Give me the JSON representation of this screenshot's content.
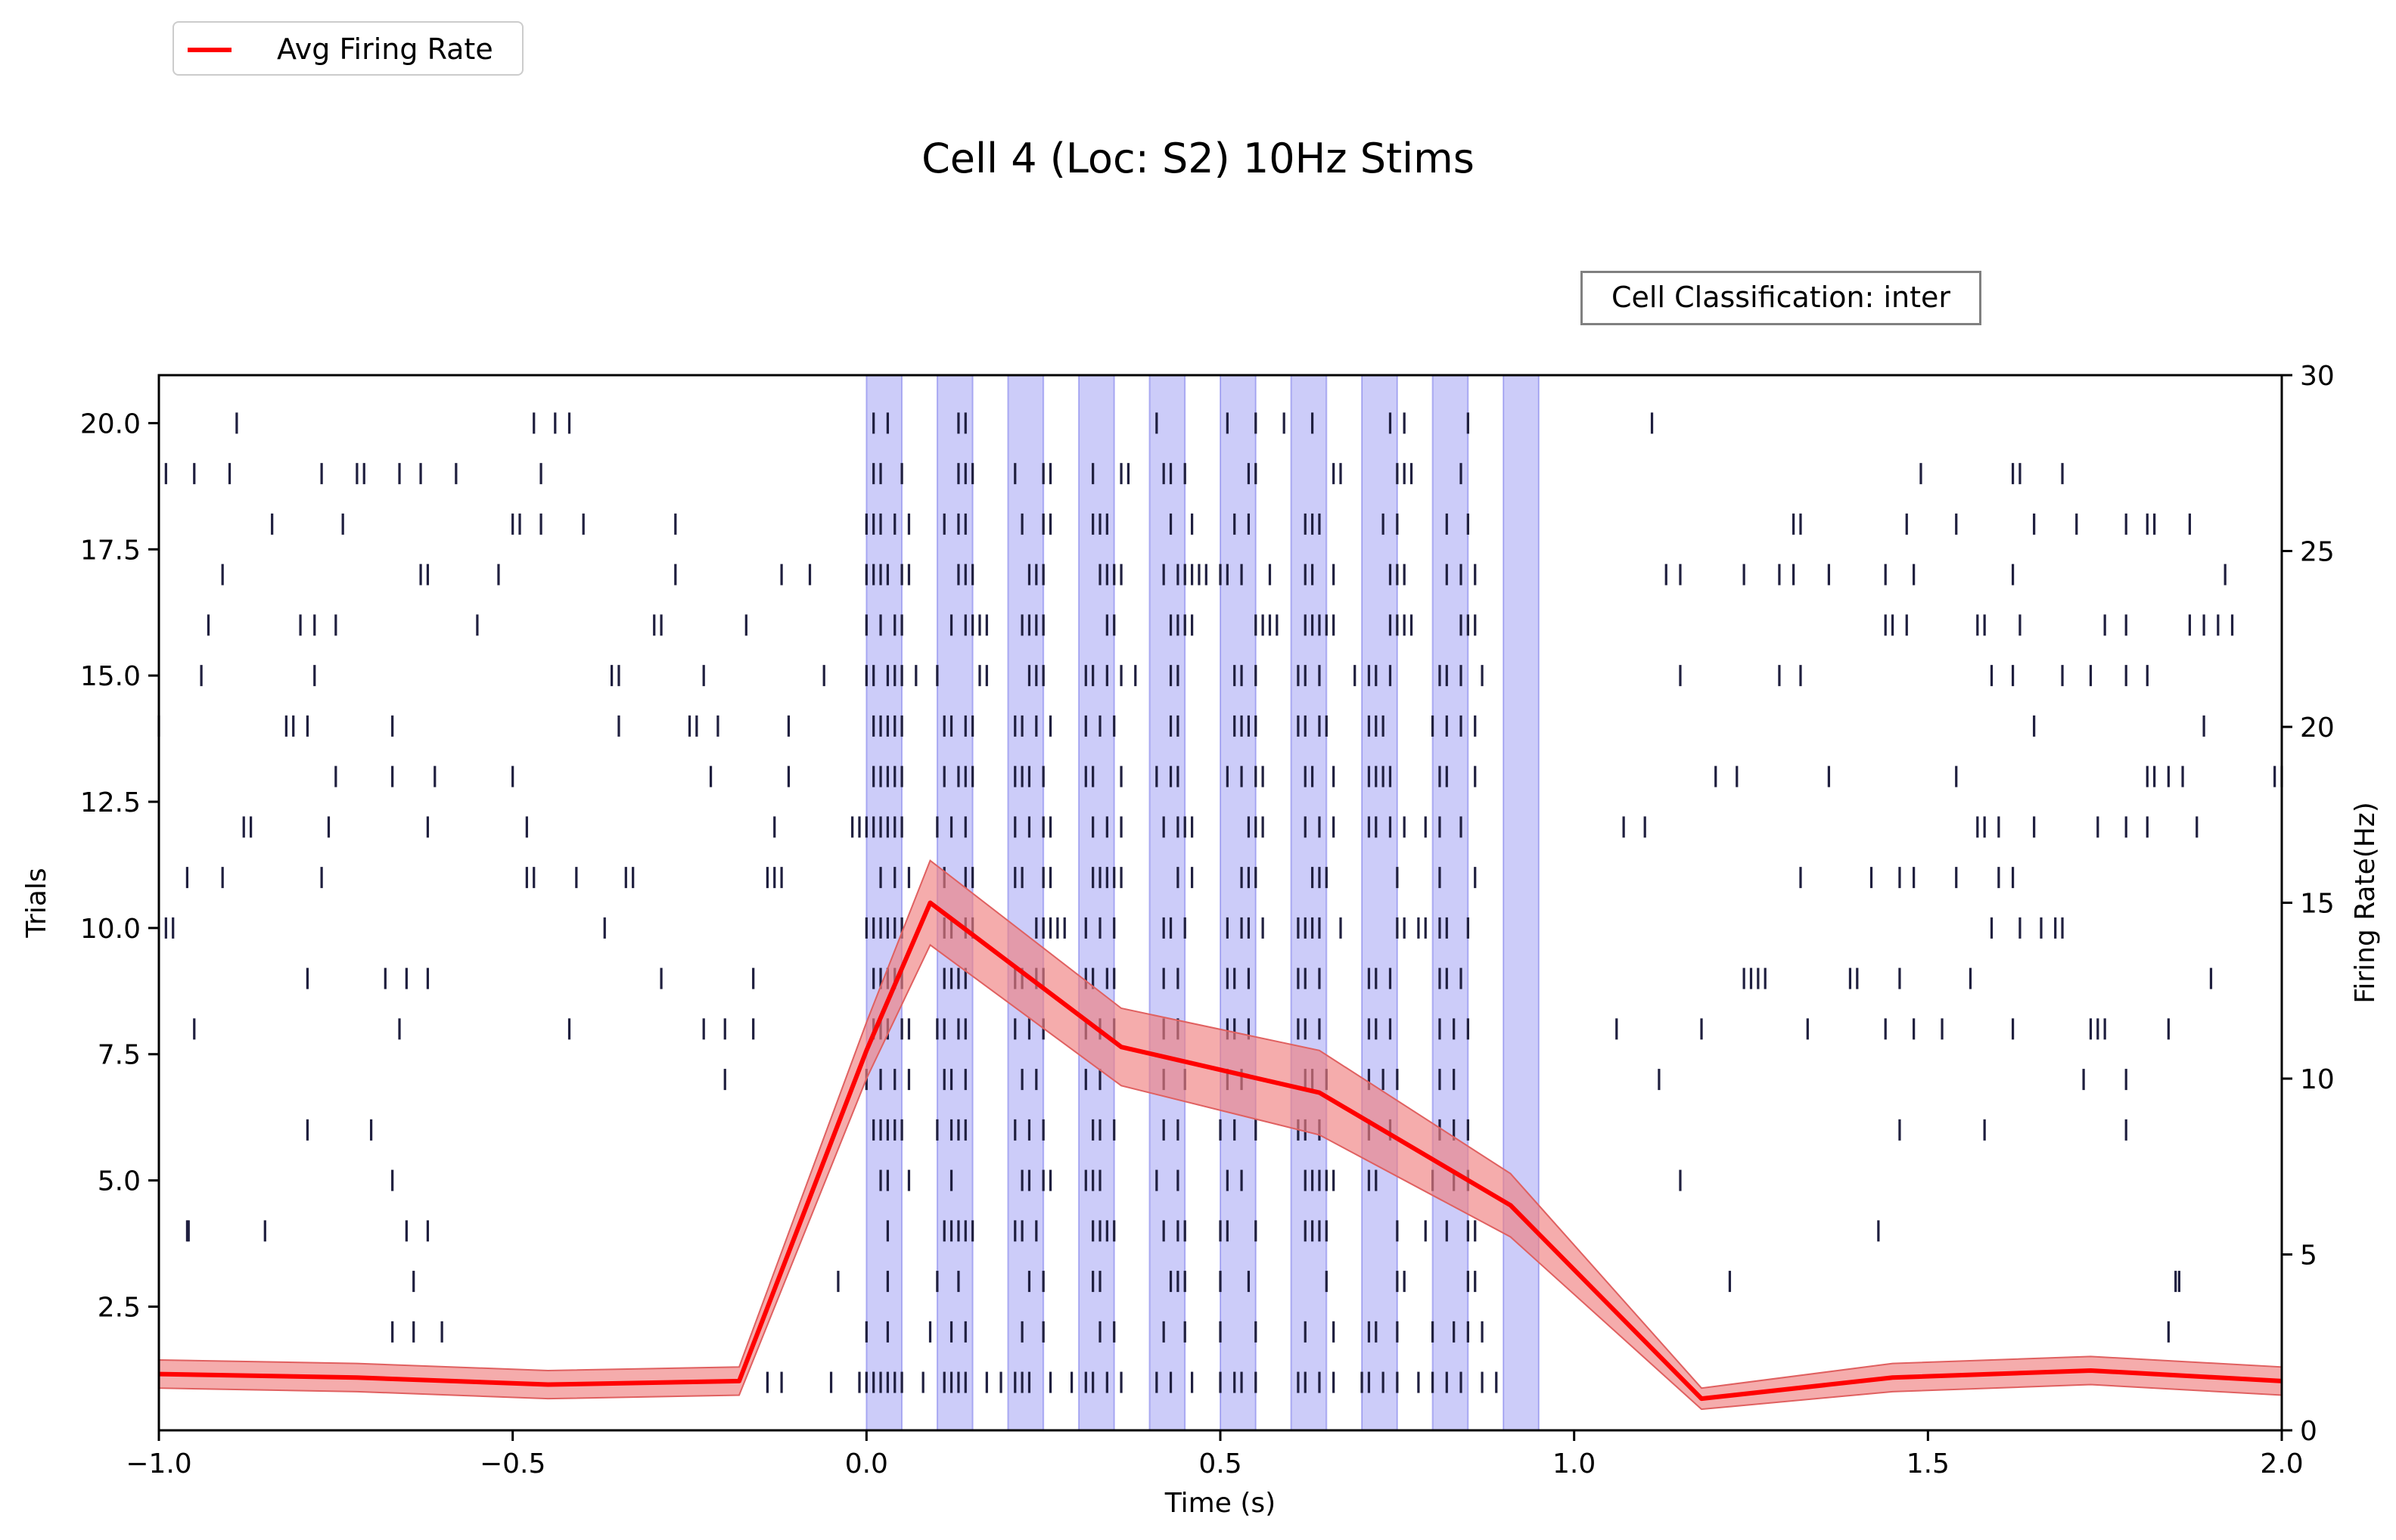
{
  "chart_data": {
    "type": "raster+line",
    "title": "Cell 4 (Loc: S2) 10Hz Stims",
    "annotation": "Cell Classification: inter",
    "xlabel": "Time (s)",
    "ylabel_left": "Trials",
    "ylabel_right": "Firing Rate(Hz)",
    "xlim": [
      -1.0,
      2.0
    ],
    "ylim_left": [
      0.05,
      20.95
    ],
    "ylim_right": [
      0,
      30
    ],
    "x_ticks": [
      "−1.0",
      "−0.5",
      "0.0",
      "0.5",
      "1.0",
      "1.5",
      "2.0"
    ],
    "y_ticks_left": [
      "2.5",
      "5.0",
      "7.5",
      "10.0",
      "12.5",
      "15.0",
      "17.5",
      "20.0"
    ],
    "y_ticks_right": [
      "0",
      "5",
      "10",
      "15",
      "20",
      "25",
      "30"
    ],
    "legend": {
      "placement": "upper-left",
      "entries": [
        "Avg Firing Rate"
      ]
    },
    "colors": {
      "rate_line": "#ff0000",
      "rate_band": "#f08080",
      "stim_band": "#8080f0",
      "spike": "#1f1f3f"
    },
    "stimulus_windows": [
      [
        0.0,
        0.05
      ],
      [
        0.1,
        0.15
      ],
      [
        0.2,
        0.25
      ],
      [
        0.3,
        0.35
      ],
      [
        0.4,
        0.45
      ],
      [
        0.5,
        0.55
      ],
      [
        0.6,
        0.65
      ],
      [
        0.7,
        0.75
      ],
      [
        0.8,
        0.85
      ],
      [
        0.9,
        0.95
      ]
    ],
    "firing_rate": {
      "name": "Avg Firing Rate",
      "x": [
        -1.0,
        -0.72,
        -0.45,
        -0.18,
        0.0,
        0.09,
        0.36,
        0.64,
        0.91,
        1.18,
        1.45,
        1.73,
        2.0
      ],
      "y": [
        1.6,
        1.5,
        1.3,
        1.4,
        10.8,
        15.0,
        10.9,
        9.6,
        6.4,
        0.9,
        1.5,
        1.7,
        1.4
      ],
      "y_upper": [
        2.0,
        1.9,
        1.7,
        1.8,
        11.6,
        16.2,
        12.0,
        10.8,
        7.3,
        1.2,
        1.9,
        2.1,
        1.8
      ],
      "y_lower": [
        1.2,
        1.1,
        0.9,
        1.0,
        10.0,
        13.8,
        9.8,
        8.4,
        5.5,
        0.6,
        1.1,
        1.3,
        1.0
      ]
    },
    "raster": {
      "trials": [
        1,
        2,
        3,
        4,
        5,
        6,
        7,
        8,
        9,
        10,
        11,
        12,
        13,
        14,
        15,
        16,
        17,
        18,
        19,
        20
      ],
      "spike_times": [
        [
          -0.14,
          -0.12,
          -0.05,
          -0.01,
          0.0,
          0.01,
          0.02,
          0.03,
          0.04,
          0.05,
          0.08,
          0.11,
          0.12,
          0.13,
          0.14,
          0.17,
          0.19,
          0.21,
          0.22,
          0.23,
          0.26,
          0.29,
          0.31,
          0.32,
          0.34,
          0.36,
          0.41,
          0.43,
          0.46,
          0.5,
          0.52,
          0.53,
          0.55,
          0.61,
          0.62,
          0.64,
          0.66,
          0.7,
          0.71,
          0.73,
          0.75,
          0.78,
          0.8,
          0.82,
          0.84,
          0.87,
          0.89
        ],
        [
          -0.67,
          -0.64,
          -0.6,
          0.0,
          0.03,
          0.09,
          0.12,
          0.14,
          0.22,
          0.25,
          0.33,
          0.35,
          0.42,
          0.45,
          0.5,
          0.55,
          0.62,
          0.66,
          0.71,
          0.72,
          0.75,
          0.8,
          0.83,
          0.85,
          0.87,
          1.84
        ],
        [
          -0.64,
          -0.04,
          0.03,
          0.1,
          0.13,
          0.23,
          0.25,
          0.32,
          0.33,
          0.43,
          0.44,
          0.45,
          0.5,
          0.54,
          0.65,
          0.75,
          0.76,
          0.85,
          0.86,
          1.22,
          1.85,
          1.855
        ],
        [
          -0.96,
          -0.958,
          -0.85,
          -0.65,
          -0.62,
          0.03,
          0.11,
          0.12,
          0.13,
          0.14,
          0.15,
          0.21,
          0.22,
          0.24,
          0.32,
          0.33,
          0.34,
          0.35,
          0.42,
          0.44,
          0.45,
          0.5,
          0.51,
          0.55,
          0.62,
          0.63,
          0.64,
          0.65,
          0.75,
          0.79,
          0.82,
          0.85,
          0.86,
          1.43
        ],
        [
          -0.67,
          0.02,
          0.03,
          0.06,
          0.12,
          0.22,
          0.23,
          0.25,
          0.26,
          0.31,
          0.32,
          0.33,
          0.41,
          0.44,
          0.51,
          0.53,
          0.62,
          0.63,
          0.64,
          0.65,
          0.66,
          0.71,
          0.72,
          0.8,
          0.83,
          0.85,
          1.15
        ],
        [
          -0.79,
          -0.7,
          0.01,
          0.02,
          0.03,
          0.04,
          0.05,
          0.1,
          0.12,
          0.13,
          0.14,
          0.21,
          0.23,
          0.25,
          0.32,
          0.33,
          0.35,
          0.42,
          0.44,
          0.5,
          0.52,
          0.55,
          0.61,
          0.62,
          0.64,
          0.71,
          0.74,
          0.81,
          0.83,
          0.85,
          1.46,
          1.58,
          1.78
        ],
        [
          -0.2,
          0.0,
          0.02,
          0.04,
          0.06,
          0.11,
          0.12,
          0.14,
          0.22,
          0.24,
          0.31,
          0.33,
          0.42,
          0.45,
          0.51,
          0.53,
          0.62,
          0.63,
          0.65,
          0.71,
          0.73,
          0.75,
          0.81,
          0.83,
          1.12,
          1.72,
          1.78
        ],
        [
          -0.95,
          -0.66,
          -0.42,
          -0.23,
          -0.2,
          -0.16,
          0.01,
          0.02,
          0.03,
          0.05,
          0.06,
          0.1,
          0.11,
          0.13,
          0.14,
          0.21,
          0.23,
          0.25,
          0.31,
          0.33,
          0.35,
          0.42,
          0.44,
          0.51,
          0.52,
          0.54,
          0.61,
          0.62,
          0.64,
          0.71,
          0.72,
          0.74,
          0.81,
          0.83,
          0.85,
          1.06,
          1.18,
          1.33,
          1.44,
          1.48,
          1.52,
          1.62,
          1.73,
          1.74,
          1.75,
          1.84
        ],
        [
          -0.79,
          -0.68,
          -0.65,
          -0.62,
          -0.29,
          -0.16,
          0.01,
          0.02,
          0.03,
          0.04,
          0.05,
          0.11,
          0.12,
          0.13,
          0.14,
          0.21,
          0.22,
          0.24,
          0.25,
          0.31,
          0.32,
          0.34,
          0.35,
          0.42,
          0.44,
          0.51,
          0.52,
          0.54,
          0.61,
          0.62,
          0.64,
          0.71,
          0.72,
          0.74,
          0.81,
          0.82,
          0.84,
          1.24,
          1.25,
          1.26,
          1.27,
          1.39,
          1.4,
          1.46,
          1.56,
          1.9
        ],
        [
          -0.99,
          -0.98,
          -0.37,
          0.0,
          0.01,
          0.02,
          0.03,
          0.04,
          0.05,
          0.11,
          0.12,
          0.14,
          0.15,
          0.24,
          0.25,
          0.26,
          0.27,
          0.28,
          0.31,
          0.33,
          0.35,
          0.42,
          0.43,
          0.45,
          0.51,
          0.53,
          0.54,
          0.56,
          0.61,
          0.62,
          0.63,
          0.64,
          0.67,
          0.75,
          0.76,
          0.78,
          0.79,
          0.81,
          0.82,
          0.85,
          1.59,
          1.63,
          1.66,
          1.68,
          1.69
        ],
        [
          -0.96,
          -0.91,
          -0.77,
          -0.48,
          -0.47,
          -0.41,
          -0.34,
          -0.33,
          -0.14,
          -0.13,
          -0.12,
          0.02,
          0.04,
          0.06,
          0.11,
          0.14,
          0.15,
          0.21,
          0.22,
          0.25,
          0.26,
          0.32,
          0.33,
          0.34,
          0.35,
          0.36,
          0.44,
          0.46,
          0.53,
          0.54,
          0.55,
          0.63,
          0.64,
          0.65,
          0.75,
          0.81,
          0.86,
          1.32,
          1.42,
          1.46,
          1.48,
          1.54,
          1.6,
          1.62
        ],
        [
          -0.88,
          -0.87,
          -0.76,
          -0.62,
          -0.48,
          -0.13,
          -0.02,
          -0.01,
          0.0,
          0.01,
          0.02,
          0.03,
          0.04,
          0.05,
          0.1,
          0.12,
          0.14,
          0.21,
          0.23,
          0.25,
          0.26,
          0.32,
          0.34,
          0.36,
          0.42,
          0.44,
          0.45,
          0.46,
          0.54,
          0.55,
          0.56,
          0.62,
          0.64,
          0.66,
          0.71,
          0.72,
          0.74,
          0.76,
          0.79,
          0.81,
          0.84,
          1.07,
          1.1,
          1.57,
          1.58,
          1.6,
          1.65,
          1.74,
          1.78,
          1.81,
          1.88
        ],
        [
          -0.75,
          -0.67,
          -0.61,
          -0.5,
          -0.22,
          -0.11,
          0.01,
          0.02,
          0.03,
          0.04,
          0.05,
          0.11,
          0.13,
          0.14,
          0.15,
          0.21,
          0.22,
          0.23,
          0.25,
          0.31,
          0.32,
          0.36,
          0.41,
          0.43,
          0.44,
          0.51,
          0.53,
          0.55,
          0.56,
          0.62,
          0.63,
          0.66,
          0.71,
          0.72,
          0.73,
          0.74,
          0.81,
          0.82,
          0.86,
          1.2,
          1.23,
          1.36,
          1.54,
          1.81,
          1.82,
          1.84,
          1.86,
          1.99,
          2.0
        ],
        [
          -1.0,
          -0.82,
          -0.81,
          -0.79,
          -0.67,
          -0.35,
          -0.25,
          -0.24,
          -0.21,
          -0.11,
          0.01,
          0.02,
          0.03,
          0.04,
          0.05,
          0.11,
          0.12,
          0.14,
          0.15,
          0.21,
          0.22,
          0.24,
          0.26,
          0.31,
          0.33,
          0.35,
          0.43,
          0.44,
          0.52,
          0.53,
          0.54,
          0.55,
          0.61,
          0.62,
          0.64,
          0.65,
          0.71,
          0.72,
          0.73,
          0.8,
          0.82,
          0.84,
          0.86,
          1.65,
          1.89
        ],
        [
          -0.94,
          -0.78,
          -0.36,
          -0.35,
          -0.23,
          -0.06,
          0.0,
          0.01,
          0.03,
          0.04,
          0.05,
          0.07,
          0.1,
          0.16,
          0.17,
          0.23,
          0.24,
          0.25,
          0.31,
          0.32,
          0.34,
          0.36,
          0.38,
          0.43,
          0.44,
          0.52,
          0.53,
          0.55,
          0.61,
          0.62,
          0.64,
          0.69,
          0.71,
          0.72,
          0.74,
          0.81,
          0.82,
          0.84,
          0.87,
          1.15,
          1.29,
          1.32,
          1.59,
          1.62,
          1.69,
          1.73,
          1.78,
          1.81
        ],
        [
          -0.93,
          -0.8,
          -0.78,
          -0.75,
          -0.55,
          -0.3,
          -0.29,
          -0.17,
          0.0,
          0.02,
          0.04,
          0.05,
          0.12,
          0.14,
          0.15,
          0.16,
          0.17,
          0.22,
          0.23,
          0.24,
          0.25,
          0.34,
          0.35,
          0.43,
          0.44,
          0.45,
          0.46,
          0.55,
          0.56,
          0.57,
          0.58,
          0.62,
          0.63,
          0.64,
          0.65,
          0.66,
          0.74,
          0.75,
          0.76,
          0.77,
          0.84,
          0.85,
          0.86,
          1.44,
          1.45,
          1.47,
          1.57,
          1.58,
          1.63,
          1.75,
          1.78,
          1.87,
          1.89,
          1.91,
          1.93
        ],
        [
          -0.91,
          -0.63,
          -0.62,
          -0.52,
          -0.27,
          -0.12,
          -0.08,
          0.0,
          0.01,
          0.02,
          0.03,
          0.05,
          0.06,
          0.13,
          0.14,
          0.15,
          0.23,
          0.24,
          0.25,
          0.33,
          0.34,
          0.35,
          0.36,
          0.42,
          0.44,
          0.45,
          0.46,
          0.47,
          0.48,
          0.5,
          0.51,
          0.53,
          0.57,
          0.62,
          0.63,
          0.66,
          0.74,
          0.75,
          0.76,
          0.82,
          0.84,
          0.86,
          1.13,
          1.15,
          1.24,
          1.29,
          1.31,
          1.36,
          1.44,
          1.48,
          1.62,
          1.92
        ],
        [
          -0.84,
          -0.74,
          -0.5,
          -0.49,
          -0.46,
          -0.4,
          -0.27,
          0.0,
          0.01,
          0.02,
          0.04,
          0.06,
          0.11,
          0.13,
          0.14,
          0.22,
          0.25,
          0.26,
          0.32,
          0.33,
          0.34,
          0.43,
          0.46,
          0.52,
          0.54,
          0.62,
          0.63,
          0.64,
          0.73,
          0.75,
          0.82,
          0.85,
          1.31,
          1.32,
          1.47,
          1.54,
          1.65,
          1.71,
          1.78,
          1.81,
          1.82,
          1.87
        ],
        [
          -0.99,
          -0.95,
          -0.9,
          -0.77,
          -0.72,
          -0.71,
          -0.66,
          -0.63,
          -0.58,
          -0.46,
          0.01,
          0.02,
          0.05,
          0.13,
          0.14,
          0.15,
          0.21,
          0.25,
          0.26,
          0.32,
          0.36,
          0.37,
          0.42,
          0.43,
          0.45,
          0.54,
          0.55,
          0.66,
          0.67,
          0.75,
          0.76,
          0.77,
          0.84,
          1.49,
          1.62,
          1.63,
          1.69
        ],
        [
          -0.89,
          -0.47,
          -0.44,
          -0.42,
          0.01,
          0.03,
          0.13,
          0.14,
          0.41,
          0.51,
          0.55,
          0.59,
          0.63,
          0.74,
          0.76,
          0.85,
          1.11
        ]
      ]
    }
  }
}
